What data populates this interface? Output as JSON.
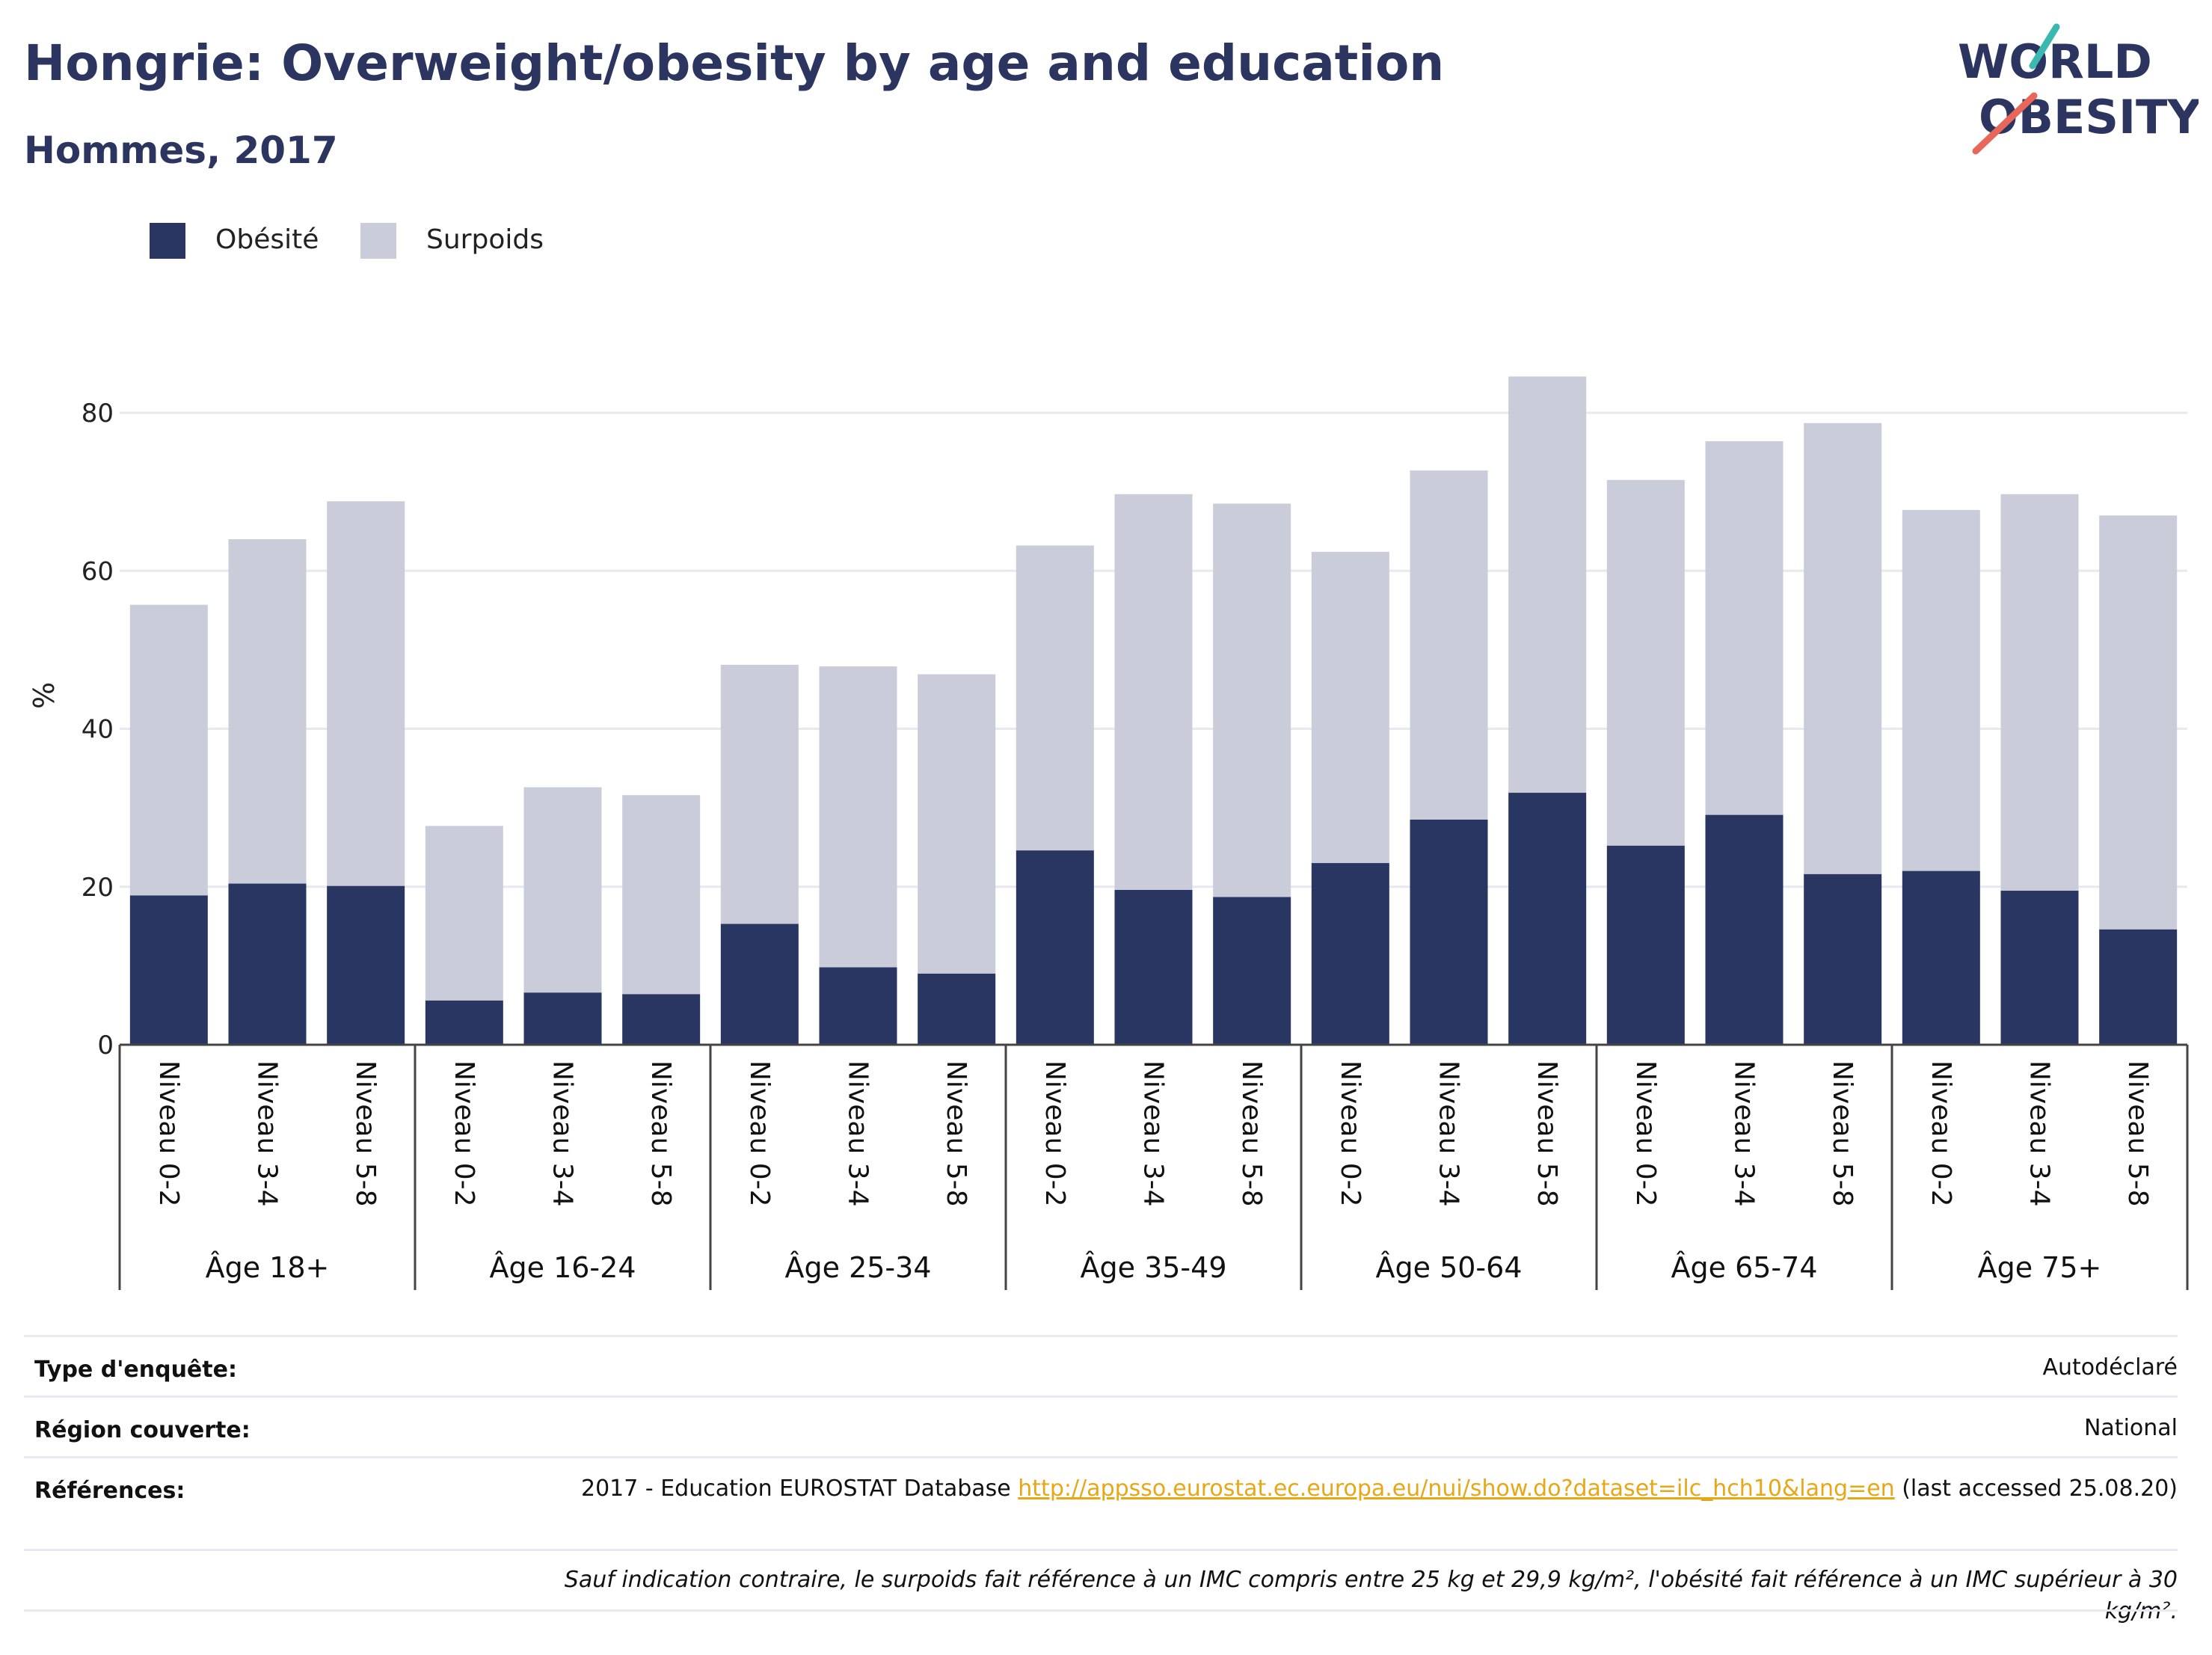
{
  "header": {
    "title": "Hongrie: Overweight/obesity by age and education",
    "subtitle": "Hommes, 2017"
  },
  "logo": {
    "line1": "WORLD",
    "line2": "OBESITY",
    "colors": [
      "#2b3560",
      "#e8675a",
      "#3bb8b0"
    ]
  },
  "legend": [
    {
      "label": "Obésité",
      "color": "#2a3662"
    },
    {
      "label": "Surpoids",
      "color": "#cacdd9"
    }
  ],
  "chart_data": {
    "type": "bar",
    "stacked": true,
    "ylabel": "%",
    "ylim": [
      0,
      90
    ],
    "yticks": [
      0,
      20,
      40,
      60,
      80
    ],
    "grid": true,
    "legend_position": "top-left",
    "groups": [
      "Âge 18+",
      "Âge 16-24",
      "Âge 25-34",
      "Âge 35-49",
      "Âge 50-64",
      "Âge 65-74",
      "Âge 75+"
    ],
    "categories_per_group": [
      "Niveau 0-2",
      "Niveau 3-4",
      "Niveau 5-8"
    ],
    "series": [
      {
        "name": "Obésité",
        "color": "#2a3662",
        "values": [
          18.9,
          20.4,
          20.1,
          5.6,
          6.6,
          6.4,
          15.3,
          9.8,
          9.0,
          24.6,
          19.6,
          18.7,
          23.0,
          28.5,
          31.9,
          25.2,
          29.1,
          21.6,
          22.0,
          19.5,
          14.6
        ]
      },
      {
        "name": "Surpoids",
        "color": "#cacdd9",
        "values": [
          36.8,
          43.6,
          48.7,
          22.1,
          26.0,
          25.2,
          32.8,
          38.1,
          37.9,
          38.6,
          50.1,
          49.8,
          39.4,
          44.2,
          52.7,
          46.3,
          47.3,
          57.1,
          45.7,
          50.2,
          52.4
        ]
      }
    ]
  },
  "info": {
    "survey_type_label": "Type d'enquête:",
    "survey_type_value": "Autodéclaré",
    "region_label": "Région couverte:",
    "region_value": "National",
    "references_label": "Références:",
    "references_prefix": "2017 - Education EUROSTAT Database ",
    "references_link": "http://appsso.eurostat.ec.europa.eu/nui/show.do?dataset=ilc_hch10&lang=en",
    "references_suffix": " (last accessed 25.08.20)",
    "footnote": "Sauf indication contraire, le surpoids fait référence à un IMC compris entre 25 kg et 29,9 kg/m², l'obésité fait référence à un IMC supérieur à 30 kg/m²."
  }
}
